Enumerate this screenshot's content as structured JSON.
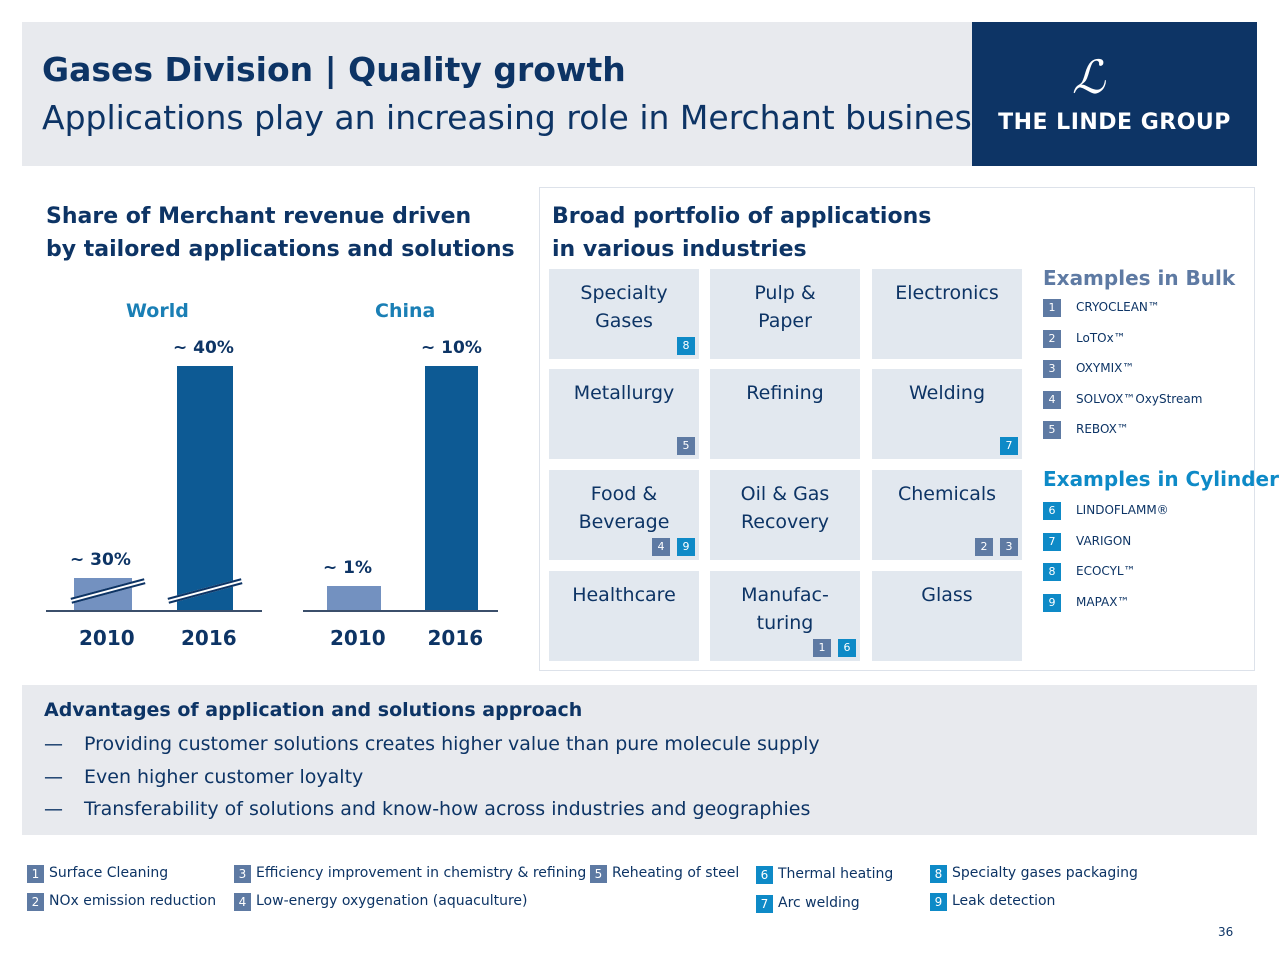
{
  "header": {
    "title": "Gases Division | Quality growth",
    "subtitle": "Applications play an increasing role in Merchant business",
    "logo_text": "THE LINDE GROUP"
  },
  "left": {
    "heading_line1": "Share of Merchant revenue driven",
    "heading_line2": "by tailored applications and solutions"
  },
  "chart_data": {
    "type": "bar",
    "groups": [
      {
        "name": "World",
        "categories": [
          "2010",
          "2016"
        ],
        "values": [
          30,
          40
        ],
        "labels": [
          "~ 30%",
          "~ 40%"
        ]
      },
      {
        "name": "China",
        "categories": [
          "2010",
          "2016"
        ],
        "values": [
          1,
          10
        ],
        "labels": [
          "~ 1%",
          "~ 10%"
        ]
      }
    ],
    "colors": {
      "2010": "#7391c0",
      "2016": "#0d5a94"
    }
  },
  "right": {
    "heading_line1": "Broad portfolio of applications",
    "heading_line2": "in various industries",
    "tiles": [
      {
        "line1": "Specialty",
        "line2": "Gases",
        "badges": [
          {
            "n": "8",
            "c": "light"
          }
        ]
      },
      {
        "line1": "Pulp &",
        "line2": "Paper",
        "badges": []
      },
      {
        "line1": "Electronics",
        "line2": "",
        "badges": []
      },
      {
        "line1": "Metallurgy",
        "line2": "",
        "badges": [
          {
            "n": "5",
            "c": "gray"
          }
        ]
      },
      {
        "line1": "Refining",
        "line2": "",
        "badges": []
      },
      {
        "line1": "Welding",
        "line2": "",
        "badges": [
          {
            "n": "7",
            "c": "light"
          }
        ]
      },
      {
        "line1": "Food &",
        "line2": "Beverage",
        "badges": [
          {
            "n": "4",
            "c": "gray"
          },
          {
            "n": "9",
            "c": "light"
          }
        ]
      },
      {
        "line1": "Oil & Gas",
        "line2": "Recovery",
        "badges": []
      },
      {
        "line1": "Chemicals",
        "line2": "",
        "badges": [
          {
            "n": "2",
            "c": "gray"
          },
          {
            "n": "3",
            "c": "gray"
          }
        ]
      },
      {
        "line1": "Healthcare",
        "line2": "",
        "badges": []
      },
      {
        "line1": "Manufac-",
        "line2": "turing",
        "badges": [
          {
            "n": "1",
            "c": "gray"
          },
          {
            "n": "6",
            "c": "light"
          }
        ]
      },
      {
        "line1": "Glass",
        "line2": "",
        "badges": []
      }
    ],
    "bulk_title": "Examples in Bulk",
    "bulk": [
      {
        "n": "1",
        "name": "CRYOCLEAN™"
      },
      {
        "n": "2",
        "name": "LoTOx™"
      },
      {
        "n": "3",
        "name": "OXYMIX™"
      },
      {
        "n": "4",
        "name": "SOLVOX™OxyStream"
      },
      {
        "n": "5",
        "name": "REBOX™"
      }
    ],
    "cylinder_title": "Examples in Cylinder",
    "cylinder": [
      {
        "n": "6",
        "name": "LINDOFLAMM®"
      },
      {
        "n": "7",
        "name": "VARIGON"
      },
      {
        "n": "8",
        "name": "ECOCYL™"
      },
      {
        "n": "9",
        "name": "MAPAX™"
      }
    ]
  },
  "advantages": {
    "title": "Advantages of application and solutions approach",
    "dash": "—",
    "items": [
      "Providing customer solutions creates higher value than pure molecule supply",
      "Even higher customer loyalty",
      "Transferability of solutions and know-how across industries and geographies"
    ]
  },
  "legend": [
    {
      "n": "1",
      "text": "Surface Cleaning",
      "c": "gray"
    },
    {
      "n": "2",
      "text": "NOx emission reduction",
      "c": "gray"
    },
    {
      "n": "3",
      "text": "Efficiency improvement in  chemistry & refining",
      "c": "gray"
    },
    {
      "n": "4",
      "text": "Low-energy oxygenation  (aquaculture)",
      "c": "gray"
    },
    {
      "n": "5",
      "text": "Reheating of steel",
      "c": "gray"
    },
    {
      "n": "6",
      "text": "Thermal heating",
      "c": "light"
    },
    {
      "n": "7",
      "text": "Arc welding",
      "c": "light"
    },
    {
      "n": "8",
      "text": "Specialty gases packaging",
      "c": "light"
    },
    {
      "n": "9",
      "text": "Leak detection",
      "c": "light"
    }
  ],
  "page_number": "36"
}
